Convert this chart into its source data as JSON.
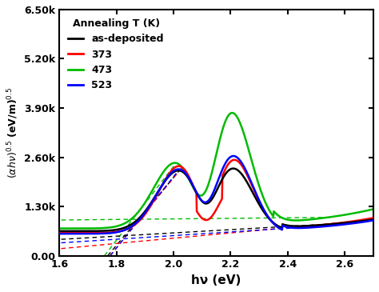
{
  "title": "",
  "xlabel": "hν (eV)",
  "xlim": [
    1.6,
    2.7
  ],
  "ylim": [
    0,
    6500
  ],
  "yticks": [
    0,
    1300,
    2600,
    3900,
    5200,
    6500
  ],
  "ytick_labels": [
    "0.00",
    "1.30k",
    "2.60k",
    "3.90k",
    "5.20k",
    "6.50k"
  ],
  "xticks": [
    1.6,
    1.8,
    2.0,
    2.2,
    2.4,
    2.6
  ],
  "colors": {
    "as_deposited": "#000000",
    "373": "#ff0000",
    "473": "#00bb00",
    "523": "#0000ff"
  },
  "legend_title": "Annealing T (K)",
  "legend_labels": [
    "as-deposited",
    "373",
    "473",
    "523"
  ],
  "background": "#ffffff",
  "tauc_lines_1": [
    {
      "x_start": 1.9,
      "x_end": 2.02,
      "key": "as_deposited"
    },
    {
      "x_start": 1.92,
      "x_end": 2.03,
      "key": "373"
    },
    {
      "x_start": 1.88,
      "x_end": 2.01,
      "key": "473"
    },
    {
      "x_start": 1.91,
      "x_end": 2.02,
      "key": "523"
    }
  ],
  "tauc_lines_2": [
    {
      "x_start": 2.42,
      "x_end": 2.58,
      "key": "as_deposited"
    },
    {
      "x_start": 2.44,
      "x_end": 2.6,
      "key": "373"
    },
    {
      "x_start": 2.38,
      "x_end": 2.54,
      "key": "473"
    },
    {
      "x_start": 2.42,
      "x_end": 2.58,
      "key": "523"
    }
  ]
}
